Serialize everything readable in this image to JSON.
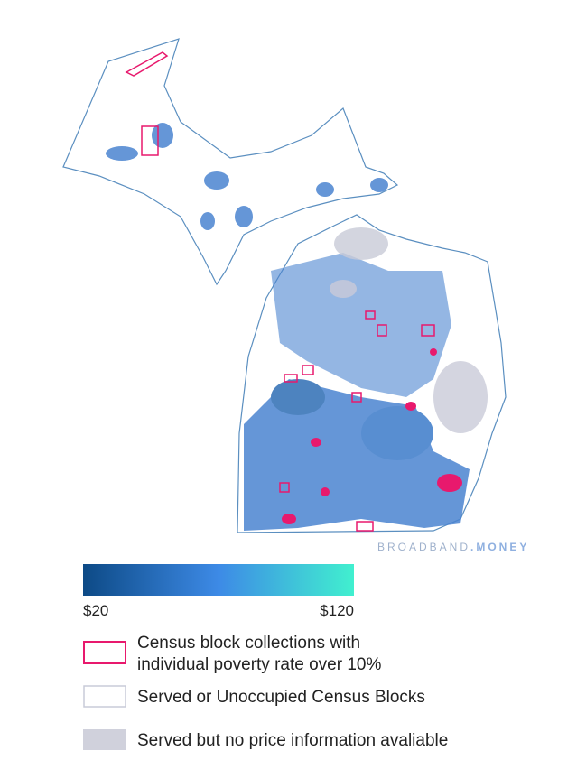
{
  "watermark": {
    "brand": "BROADBAND",
    "suffix": ".MONEY"
  },
  "colorbar": {
    "min_label": "$20",
    "max_label": "$120"
  },
  "legend": {
    "items": [
      {
        "lines": [
          "Census block collections with",
          "individual poverty rate over 10%"
        ]
      },
      {
        "lines": [
          "Served or Unoccupied Census Blocks"
        ]
      },
      {
        "lines": [
          "Served but no price information avaliable"
        ]
      }
    ]
  }
}
